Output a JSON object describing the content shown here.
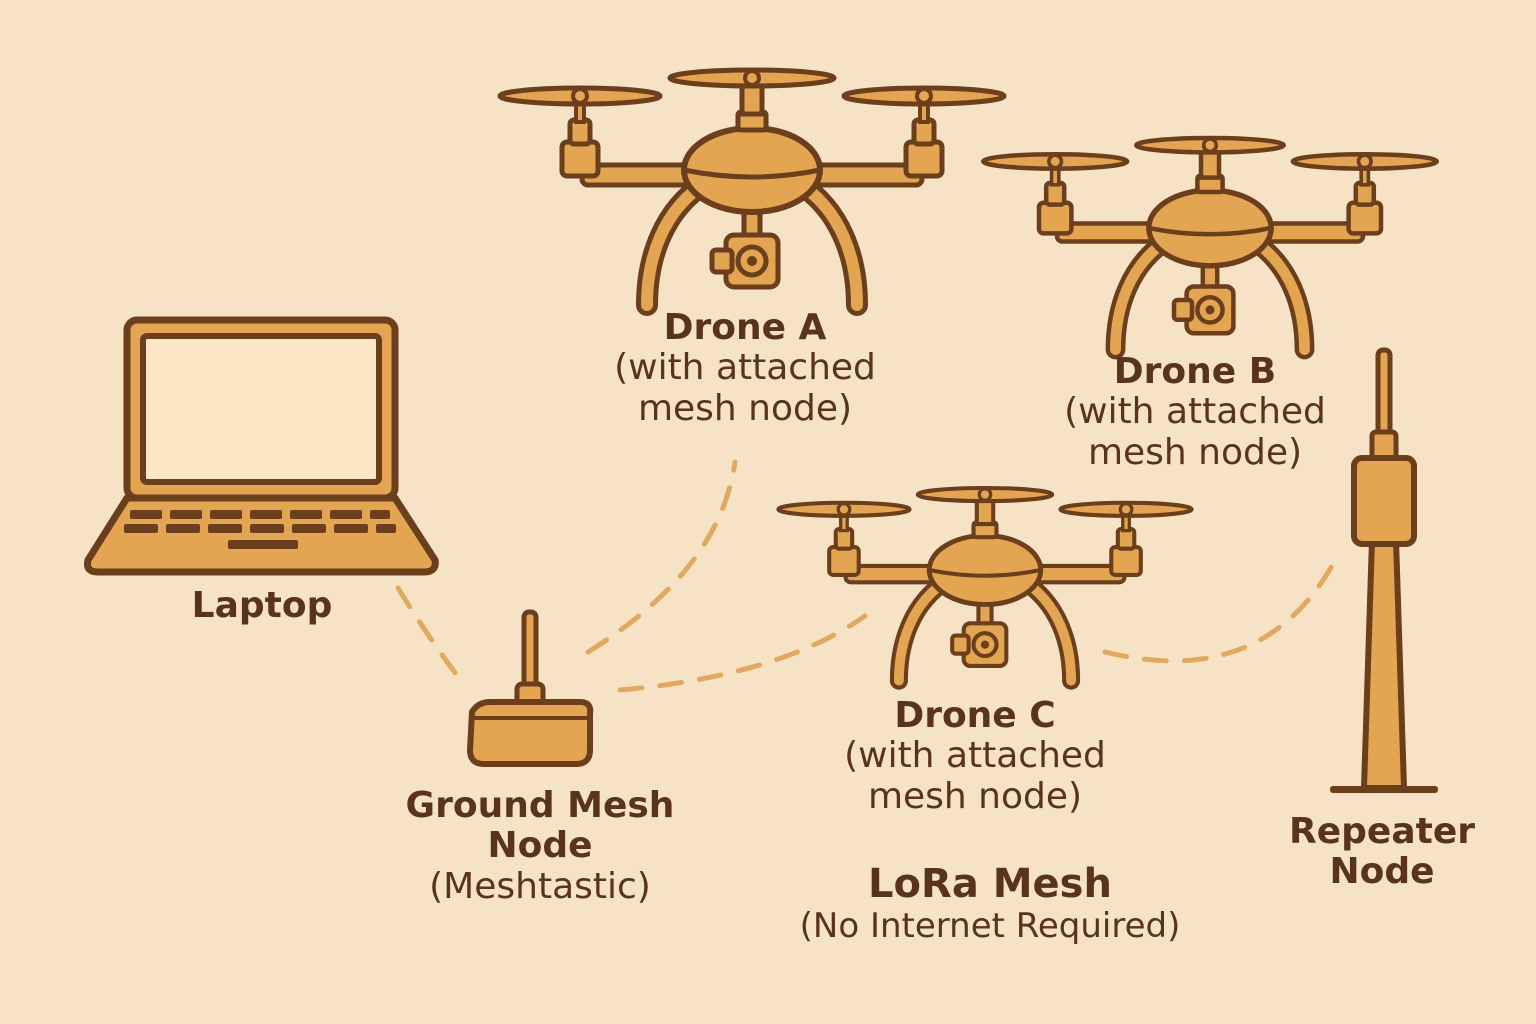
{
  "colors": {
    "background": "#f6e3c6",
    "fill": "#e3a552",
    "stroke": "#6b3e1c",
    "screen": "#fbe6c6",
    "link": "#e1a860",
    "text": "#5a3418"
  },
  "nodes": {
    "laptop": {
      "title": "Laptop",
      "icon": "laptop-icon"
    },
    "drone_a": {
      "title": "Drone A",
      "subtitle": "(with attached mesh node)",
      "sub_line1": "(with attached",
      "sub_line2": "mesh node)",
      "icon": "drone-icon"
    },
    "drone_b": {
      "title": "Drone B",
      "subtitle": "(with attached mesh node)",
      "sub_line1": "(with attached",
      "sub_line2": "mesh node)",
      "icon": "drone-icon"
    },
    "drone_c": {
      "title": "Drone C",
      "subtitle": "(with attached mesh node)",
      "sub_line1": "(with attached",
      "sub_line2": "mesh node)",
      "icon": "drone-icon"
    },
    "ground": {
      "title_line1": "Ground Mesh",
      "title_line2": "Node",
      "subtitle": "(Meshtastic)",
      "icon": "ground-node-icon"
    },
    "repeater": {
      "title_line1": "Repeater",
      "title_line2": "Node",
      "icon": "repeater-tower-icon"
    }
  },
  "network": {
    "title": "LoRa Mesh",
    "subtitle": "(No Internet Required)"
  },
  "links": [
    {
      "from": "laptop",
      "to": "ground",
      "style": "dashed"
    },
    {
      "from": "ground",
      "to": "drone_a",
      "style": "dashed"
    },
    {
      "from": "ground",
      "to": "drone_c",
      "style": "dashed"
    },
    {
      "from": "drone_c",
      "to": "repeater",
      "style": "dashed"
    }
  ]
}
